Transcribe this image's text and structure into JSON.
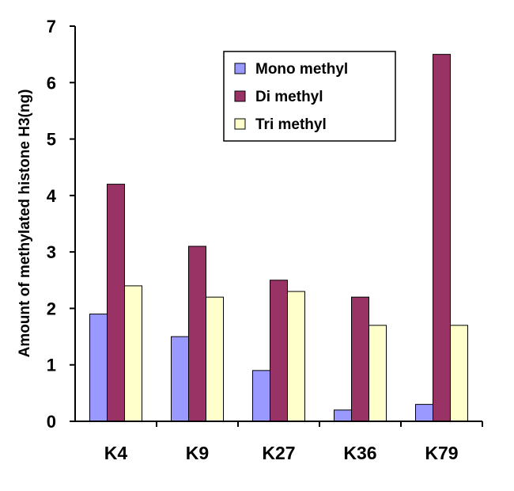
{
  "chart_data": {
    "type": "bar",
    "title": "",
    "xlabel": "",
    "ylabel": "Amount of methylated histone H3(ng)",
    "categories": [
      "K4",
      "K9",
      "K27",
      "K36",
      "K79"
    ],
    "ylim": [
      0,
      7
    ],
    "yticks": [
      "0",
      "1",
      "2",
      "3",
      "4",
      "5",
      "6",
      "7"
    ],
    "grid": false,
    "legend_position": "top-right",
    "series": [
      {
        "name": "Mono methyl",
        "color": "#9999ff",
        "values": [
          1.9,
          1.5,
          0.9,
          0.2,
          0.3
        ]
      },
      {
        "name": "Di methyl",
        "color": "#993366",
        "values": [
          4.2,
          3.1,
          2.5,
          2.2,
          6.5
        ]
      },
      {
        "name": "Tri methyl",
        "color": "#ffffcc",
        "values": [
          2.4,
          2.2,
          2.3,
          1.7,
          1.7
        ]
      }
    ]
  }
}
